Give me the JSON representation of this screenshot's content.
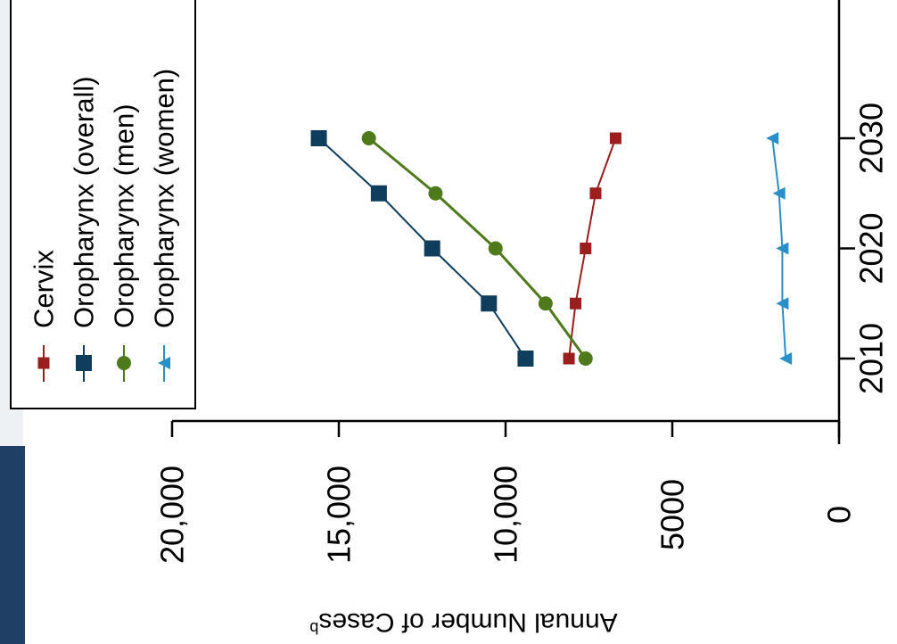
{
  "chart_data": {
    "type": "line",
    "orientation": "rotated-90-clockwise",
    "ylabel": "Annual Number of Cases",
    "ylabel_superscript": "b",
    "y_ticks": [
      0,
      5000,
      10000,
      15000,
      20000
    ],
    "y_tick_labels": [
      "0",
      "5000",
      "10,000",
      "15,000",
      "20,000"
    ],
    "ylim": [
      0,
      20000
    ],
    "x_ticks": [
      2010,
      2020,
      2030
    ],
    "x_tick_labels": [
      "2010",
      "2020",
      "2030"
    ],
    "xlim": [
      2005,
      2036
    ],
    "x": [
      2010,
      2015,
      2020,
      2025,
      2030
    ],
    "legend_position": "top-left",
    "series": [
      {
        "name": "Cervix",
        "color": "#9b1d1d",
        "marker": "square-small",
        "values": [
          8100,
          7900,
          7600,
          7300,
          6700
        ]
      },
      {
        "name": "Oropharynx  (overall)",
        "color": "#0f3d5c",
        "marker": "square",
        "values": [
          9400,
          10500,
          12200,
          13800,
          15600
        ]
      },
      {
        "name": "Oropharynx  (men)",
        "color": "#4e7a1c",
        "marker": "circle",
        "values": [
          7600,
          8800,
          10300,
          12100,
          14100
        ]
      },
      {
        "name": "Oropharynx  (women)",
        "color": "#2a8fc9",
        "marker": "triangle",
        "values": [
          1600,
          1700,
          1700,
          1800,
          2000
        ]
      }
    ]
  }
}
